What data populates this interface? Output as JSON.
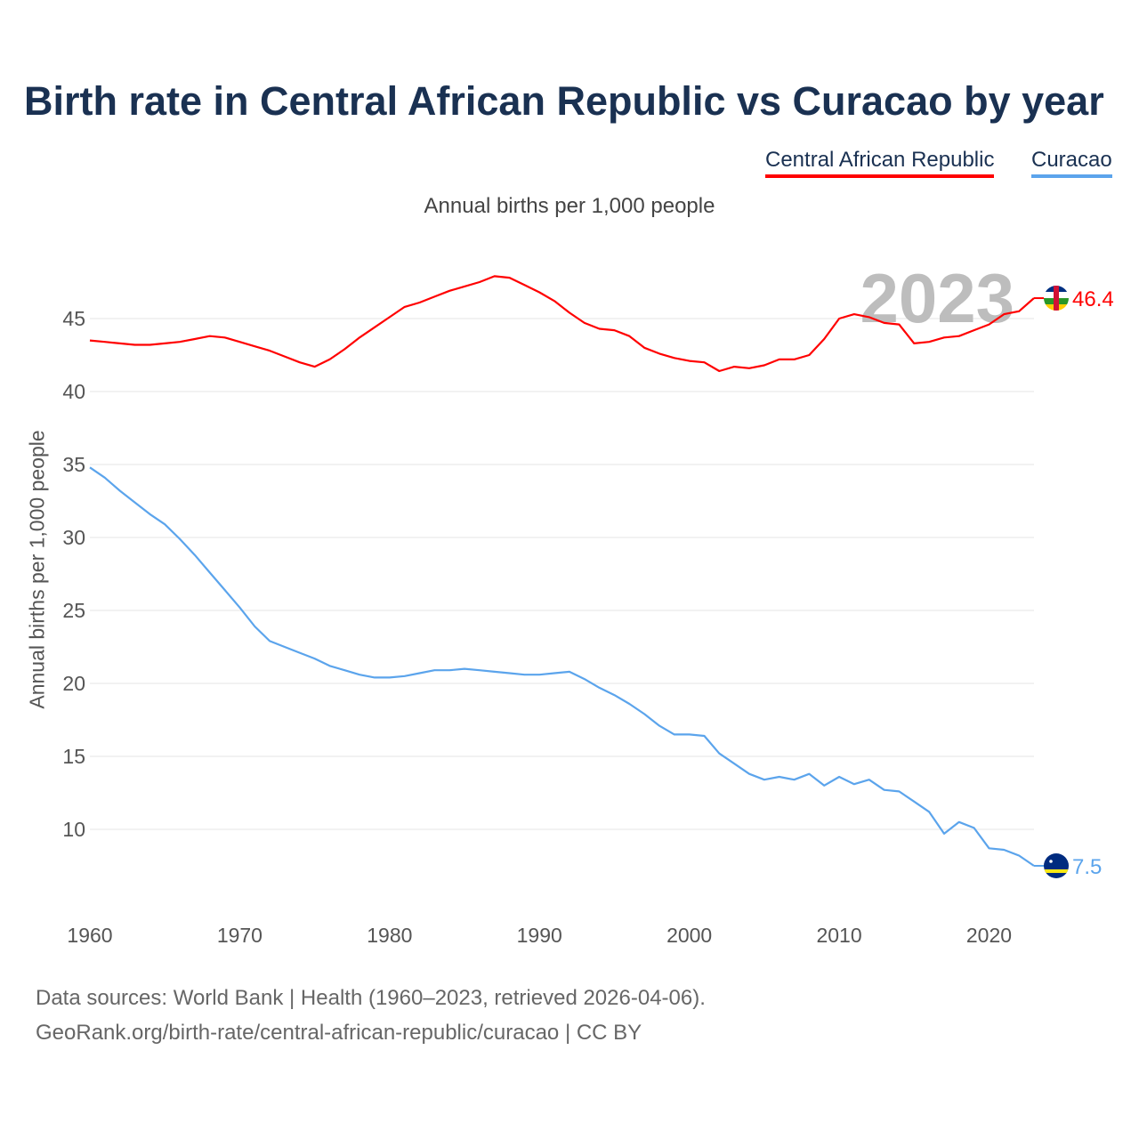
{
  "chart_data": {
    "type": "line",
    "title": "Birth rate in Central African Republic vs Curacao by year",
    "subtitle": "Annual births per 1,000 people",
    "ylabel": "Annual births per 1,000 people",
    "xlabel": "",
    "xlim": [
      1960,
      2023
    ],
    "ylim": [
      5.2,
      48.5
    ],
    "yticks": [
      "10",
      "15",
      "20",
      "25",
      "30",
      "35",
      "40",
      "45"
    ],
    "xticks": [
      "1960",
      "1970",
      "1980",
      "1990",
      "2000",
      "2010",
      "2020"
    ],
    "grid": true,
    "legend_position": "top-right",
    "year_watermark": "2023",
    "x": [
      1960,
      1961,
      1962,
      1963,
      1964,
      1965,
      1966,
      1967,
      1968,
      1969,
      1970,
      1971,
      1972,
      1973,
      1974,
      1975,
      1976,
      1977,
      1978,
      1979,
      1980,
      1981,
      1982,
      1983,
      1984,
      1985,
      1986,
      1987,
      1988,
      1989,
      1990,
      1991,
      1992,
      1993,
      1994,
      1995,
      1996,
      1997,
      1998,
      1999,
      2000,
      2001,
      2002,
      2003,
      2004,
      2005,
      2006,
      2007,
      2008,
      2009,
      2010,
      2011,
      2012,
      2013,
      2014,
      2015,
      2016,
      2017,
      2018,
      2019,
      2020,
      2021,
      2022,
      2023
    ],
    "series": [
      {
        "name": "Central African Republic",
        "color": "#ff0000",
        "end_label": "46.4",
        "values": [
          43.5,
          43.4,
          43.3,
          43.2,
          43.2,
          43.3,
          43.4,
          43.6,
          43.8,
          43.7,
          43.4,
          43.1,
          42.8,
          42.4,
          42.0,
          41.7,
          42.2,
          42.9,
          43.7,
          44.4,
          45.1,
          45.8,
          46.1,
          46.5,
          46.9,
          47.2,
          47.5,
          47.9,
          47.8,
          47.3,
          46.8,
          46.2,
          45.4,
          44.7,
          44.3,
          44.2,
          43.8,
          43.0,
          42.6,
          42.3,
          42.1,
          42.0,
          41.4,
          41.7,
          41.6,
          41.8,
          42.2,
          42.2,
          42.5,
          43.6,
          45.0,
          45.3,
          45.1,
          44.7,
          44.6,
          43.3,
          43.4,
          43.7,
          43.8,
          44.2,
          44.6,
          45.3,
          45.5,
          46.4
        ]
      },
      {
        "name": "Curacao",
        "color": "#5ba4ec",
        "end_label": "7.5",
        "values": [
          34.8,
          34.1,
          33.2,
          32.4,
          31.6,
          30.9,
          29.9,
          28.8,
          27.6,
          26.4,
          25.2,
          23.9,
          22.9,
          22.5,
          22.1,
          21.7,
          21.2,
          20.9,
          20.6,
          20.4,
          20.4,
          20.5,
          20.7,
          20.9,
          20.9,
          21.0,
          20.9,
          20.8,
          20.7,
          20.6,
          20.6,
          20.7,
          20.8,
          20.3,
          19.7,
          19.2,
          18.6,
          17.9,
          17.1,
          16.5,
          16.5,
          16.4,
          15.2,
          14.5,
          13.8,
          13.4,
          13.6,
          13.4,
          13.8,
          13.0,
          13.6,
          13.1,
          13.4,
          12.7,
          12.6,
          11.9,
          11.2,
          9.7,
          10.5,
          10.1,
          8.7,
          8.6,
          8.2,
          7.5
        ]
      }
    ]
  },
  "footer": {
    "line1": "Data sources: World Bank | Health (1960–2023, retrieved 2026-04-06).",
    "line2": "GeoRank.org/birth-rate/central-african-republic/curacao | CC BY"
  }
}
